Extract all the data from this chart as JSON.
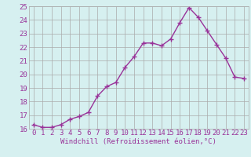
{
  "x": [
    0,
    1,
    2,
    3,
    4,
    5,
    6,
    7,
    8,
    9,
    10,
    11,
    12,
    13,
    14,
    15,
    16,
    17,
    18,
    19,
    20,
    21,
    22,
    23
  ],
  "y": [
    16.3,
    16.1,
    16.1,
    16.3,
    16.7,
    16.9,
    17.2,
    18.4,
    19.1,
    19.4,
    20.5,
    21.3,
    22.3,
    22.3,
    22.1,
    22.6,
    23.8,
    24.9,
    24.2,
    23.2,
    22.2,
    21.2,
    19.8,
    19.7
  ],
  "line_color": "#993399",
  "marker": "+",
  "marker_size": 4,
  "linewidth": 1.0,
  "bg_color": "#d6f0f0",
  "grid_color": "#aaaaaa",
  "tick_color": "#993399",
  "label_color": "#993399",
  "xlabel": "Windchill (Refroidissement éolien,°C)",
  "ylim": [
    16,
    25
  ],
  "xlim_min": -0.5,
  "xlim_max": 23.5,
  "yticks": [
    16,
    17,
    18,
    19,
    20,
    21,
    22,
    23,
    24,
    25
  ],
  "xticks": [
    0,
    1,
    2,
    3,
    4,
    5,
    6,
    7,
    8,
    9,
    10,
    11,
    12,
    13,
    14,
    15,
    16,
    17,
    18,
    19,
    20,
    21,
    22,
    23
  ],
  "xlabel_fontsize": 6.5,
  "tick_fontsize": 6.5
}
